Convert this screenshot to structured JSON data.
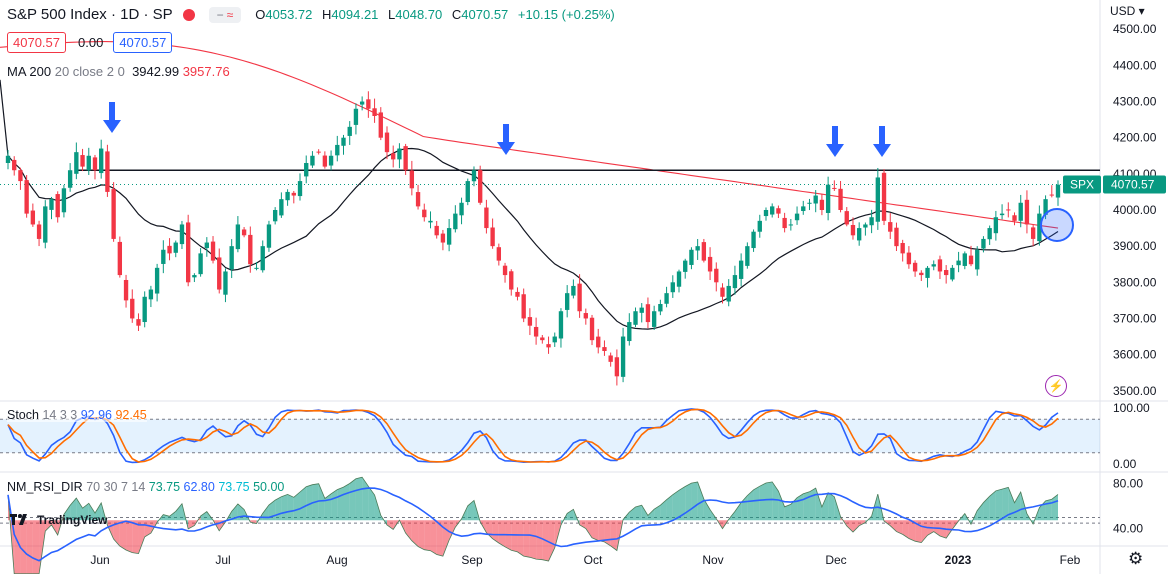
{
  "header": {
    "symbol": "S&P 500 Index · 1D · SP",
    "compare_icon": "tilde-approx-icon",
    "o_label": "O",
    "o": "4053.72",
    "h_label": "H",
    "h": "4094.21",
    "l_label": "L",
    "l": "4048.70",
    "c_label": "C",
    "c": "4070.57",
    "change": "+10.15 (+0.25%)",
    "sell": "4070.57",
    "spread": "0.00",
    "buy": "4070.57",
    "currency": "USD",
    "ma_label": "MA 200",
    "ma_params": "20 close 2 0",
    "ma_val1": "3942.99",
    "ma_val2": "3957.76"
  },
  "indicators": {
    "stoch_label": "Stoch",
    "stoch_params": "14 3 3",
    "stoch_k": "92.96",
    "stoch_d": "92.45",
    "rsi_label": "NM_RSI_DIR",
    "rsi_params": "70 30 7 14",
    "rsi_v1": "73.75",
    "rsi_v2": "62.80",
    "rsi_v3": "73.75",
    "rsi_v4": "50.00"
  },
  "brand": {
    "name": "TradingView"
  },
  "colors": {
    "up": "#089981",
    "down": "#f23645",
    "ma_black": "#131722",
    "ma_red": "#f23645",
    "stoch_k": "#2962ff",
    "stoch_d": "#ff6d00",
    "accent": "#2962ff"
  },
  "chart_data": [
    {
      "type": "candlestick",
      "title": "S&P 500 Index · 1D · SP",
      "ylim": [
        3480,
        4520
      ],
      "y_ticks": [
        "4500.00",
        "4400.00",
        "4300.00",
        "4200.00",
        "4100.00",
        "4000.00",
        "3900.00",
        "3800.00",
        "3700.00",
        "3600.00",
        "3500.00"
      ],
      "x_ticks": [
        "Jun",
        "Jul",
        "Aug",
        "Sep",
        "Oct",
        "Nov",
        "Dec",
        "2023",
        "Feb"
      ],
      "resistance_level": 4110,
      "last_price_label": "4070.57",
      "last_symbol_label": "SPX",
      "annotations": {
        "arrows_down_at": [
          "early Jun",
          "mid Sep",
          "early Dec",
          "mid Dec"
        ],
        "circle_at": "late Jan 2023 near MA crossover"
      },
      "close_path": [
        4150,
        4110,
        4080,
        3990,
        3960,
        3920,
        4010,
        4030,
        3980,
        4060,
        4110,
        4160,
        4120,
        4150,
        4110,
        4170,
        4050,
        3920,
        3820,
        3750,
        3700,
        3680,
        3760,
        3780,
        3840,
        3890,
        3880,
        3910,
        3960,
        3800,
        3820,
        3880,
        3910,
        3860,
        3780,
        3830,
        3900,
        3960,
        3930,
        3850,
        3840,
        3900,
        3960,
        4000,
        4030,
        4050,
        4040,
        4080,
        4130,
        4150,
        4160,
        4120,
        4150,
        4180,
        4200,
        4230,
        4280,
        4300,
        4280,
        4260,
        4200,
        4160,
        4140,
        4170,
        4110,
        4060,
        4010,
        3980,
        3970,
        3930,
        3910,
        3950,
        3990,
        4020,
        4080,
        4110,
        4020,
        3950,
        3900,
        3860,
        3820,
        3780,
        3760,
        3700,
        3680,
        3650,
        3640,
        3620,
        3650,
        3720,
        3770,
        3790,
        3720,
        3700,
        3640,
        3620,
        3610,
        3580,
        3540,
        3650,
        3690,
        3720,
        3730,
        3690,
        3720,
        3740,
        3770,
        3800,
        3830,
        3860,
        3890,
        3900,
        3860,
        3830,
        3800,
        3760,
        3790,
        3820,
        3860,
        3900,
        3940,
        3970,
        4000,
        4010,
        3990,
        3950,
        3960,
        3990,
        4010,
        4020,
        4040,
        4000,
        4070,
        4060,
        4000,
        3960,
        3930,
        3950,
        3960,
        3980,
        4090,
        3970,
        3940,
        3900,
        3880,
        3850,
        3830,
        3820,
        3840,
        3850,
        3830,
        3820,
        3840,
        3860,
        3880,
        3850,
        3890,
        3920,
        3950,
        3980,
        3990,
        4000,
        3970,
        4020,
        3960,
        3920,
        3990,
        4030,
        4040,
        4070
      ]
    },
    {
      "type": "line",
      "title": "Stoch 14 3 3",
      "ylim": [
        0,
        100
      ],
      "y_ticks": [
        "100.00",
        "0.00"
      ],
      "bands": [
        80,
        20
      ],
      "series": [
        {
          "name": "%K",
          "last": 92.96
        },
        {
          "name": "%D",
          "last": 92.45
        }
      ]
    },
    {
      "type": "area",
      "title": "NM_RSI_DIR 70 30 7 14",
      "ylim": [
        30,
        85
      ],
      "y_ticks": [
        "80.00",
        "40.00"
      ],
      "bands": [
        50,
        45
      ],
      "series": [
        {
          "name": "RSI",
          "last": 73.75
        },
        {
          "name": "Signal",
          "last": 62.8
        }
      ]
    }
  ]
}
